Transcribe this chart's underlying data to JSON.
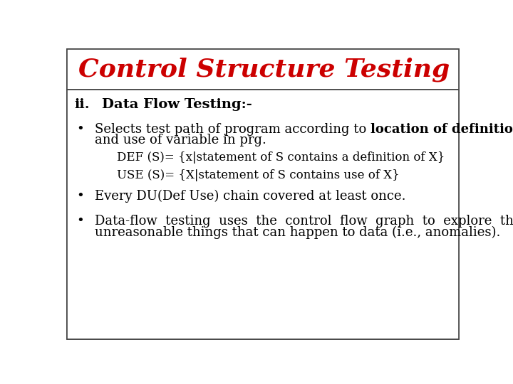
{
  "title": "Control Structure Testing",
  "title_color": "#cc0000",
  "title_fontsize": 26,
  "background_color": "#ffffff",
  "border_color": "#444444",
  "heading_ii": "ii.",
  "heading_label": "Data Flow Testing:-",
  "heading_fontsize": 14,
  "bullet1_normal": "Selects test path of program according to ",
  "bullet1_bold": "location of definition",
  "bullet1_line2": "and use of variable in prg.",
  "def_line": "DEF (S)= {x|statement of S contains a definition of X}",
  "use_line": "USE (S)= {X|statement of S contains use of X}",
  "bullet2": "Every DU(Def Use) chain covered at least once.",
  "bullet3_line1": "Data-flow  testing  uses  the  control  flow  graph  to  explore  the",
  "bullet3_line2": "unreasonable things that can happen to data (i.e., anomalies).",
  "body_fontsize": 13,
  "indent_fontsize": 12,
  "font_family": "DejaVu Serif"
}
